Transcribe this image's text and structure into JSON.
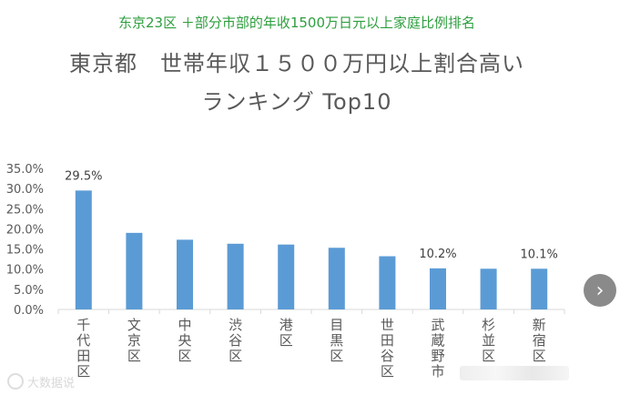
{
  "caption": "东京23区 ＋部分市部的年收1500万日元以上家庭比例排名",
  "title_line1": "東京都　世帯年収１５００万円以上割合高い",
  "title_line2": "ランキング Top10",
  "watermark_text": "大数据说",
  "chart_data": {
    "type": "bar",
    "categories": [
      "千代田区",
      "文京区",
      "中央区",
      "渋谷区",
      "港区",
      "目黒区",
      "世田谷区",
      "武蔵野市",
      "杉並区",
      "新宿区"
    ],
    "values": [
      29.5,
      19.0,
      17.3,
      16.3,
      16.1,
      15.3,
      13.2,
      10.2,
      10.1,
      10.1
    ],
    "data_labels": [
      "29.5%",
      "",
      "",
      "",
      "",
      "",
      "",
      "10.2%",
      "",
      "10.1%"
    ],
    "yticks": [
      "0.0%",
      "5.0%",
      "10.0%",
      "15.0%",
      "20.0%",
      "25.0%",
      "30.0%",
      "35.0%"
    ],
    "ylim": [
      0,
      35
    ],
    "bar_color": "#5b9bd5",
    "grid": false,
    "title": "東京都　世帯年収１５００万円以上割合高い ランキング Top10",
    "xlabel": "",
    "ylabel": ""
  }
}
